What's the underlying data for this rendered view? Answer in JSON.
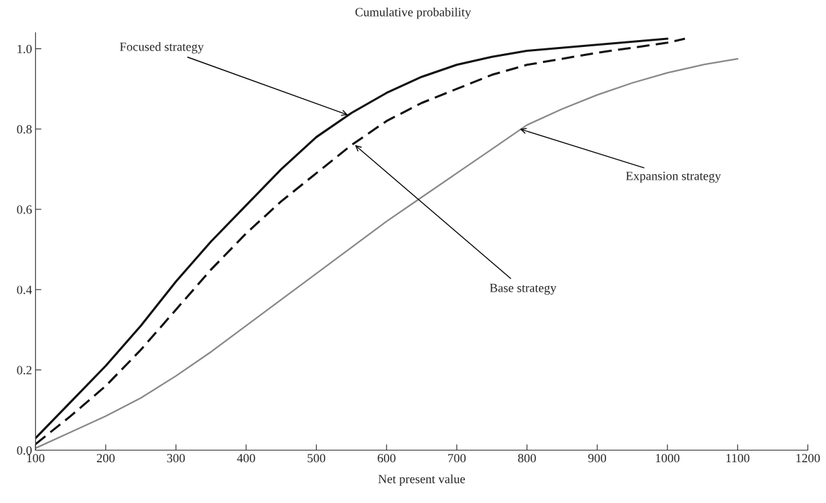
{
  "chart_data": {
    "type": "line",
    "title": "Cumulative probability",
    "xlabel": "Net present value",
    "xlim": [
      100,
      1200
    ],
    "xticks": [
      100,
      200,
      300,
      400,
      500,
      600,
      700,
      800,
      900,
      1000,
      1100,
      1200
    ],
    "ylim": [
      0,
      1.04
    ],
    "yticks": [
      {
        "value": 0,
        "label": "0.0"
      },
      0.2,
      0.4,
      0.6,
      0.8,
      {
        "value": 1,
        "label": "1.0"
      }
    ],
    "grid": false,
    "legend": false,
    "marker": "none",
    "series": [
      {
        "color": "#111111",
        "line_style": "solid",
        "x": [
          100,
          150,
          200,
          250,
          300,
          350,
          400,
          450,
          500,
          550,
          600,
          650,
          700,
          750,
          800,
          900,
          1000
        ],
        "values": [
          0.03,
          0.12,
          0.21,
          0.31,
          0.42,
          0.52,
          0.61,
          0.7,
          0.78,
          0.84,
          0.89,
          0.93,
          0.96,
          0.98,
          0.995,
          1.01,
          1.025
        ]
      },
      {
        "color": "#111111",
        "line_style": "dashed",
        "x": [
          100,
          150,
          200,
          250,
          300,
          350,
          400,
          450,
          500,
          550,
          600,
          650,
          700,
          750,
          800,
          900,
          1000,
          1025
        ],
        "values": [
          0.015,
          0.085,
          0.16,
          0.25,
          0.35,
          0.45,
          0.54,
          0.62,
          0.69,
          0.76,
          0.82,
          0.865,
          0.9,
          0.935,
          0.96,
          0.99,
          1.015,
          1.025
        ]
      },
      {
        "color": "#888888",
        "line_style": "solid",
        "x": [
          100,
          150,
          200,
          250,
          300,
          350,
          400,
          450,
          500,
          550,
          600,
          650,
          700,
          750,
          800,
          850,
          900,
          950,
          1000,
          1050,
          1100
        ],
        "values": [
          0.005,
          0.045,
          0.085,
          0.13,
          0.185,
          0.245,
          0.31,
          0.375,
          0.44,
          0.505,
          0.57,
          0.63,
          0.69,
          0.75,
          0.81,
          0.85,
          0.885,
          0.915,
          0.94,
          0.96,
          0.975
        ]
      }
    ],
    "annotations": [
      {
        "text": "Focused strategy",
        "x": 545,
        "y": 0.835
      },
      {
        "text": "Base strategy",
        "x": 555,
        "y": 0.76
      },
      {
        "text": "Expansion strategy",
        "x": 790,
        "y": 0.8
      }
    ]
  }
}
